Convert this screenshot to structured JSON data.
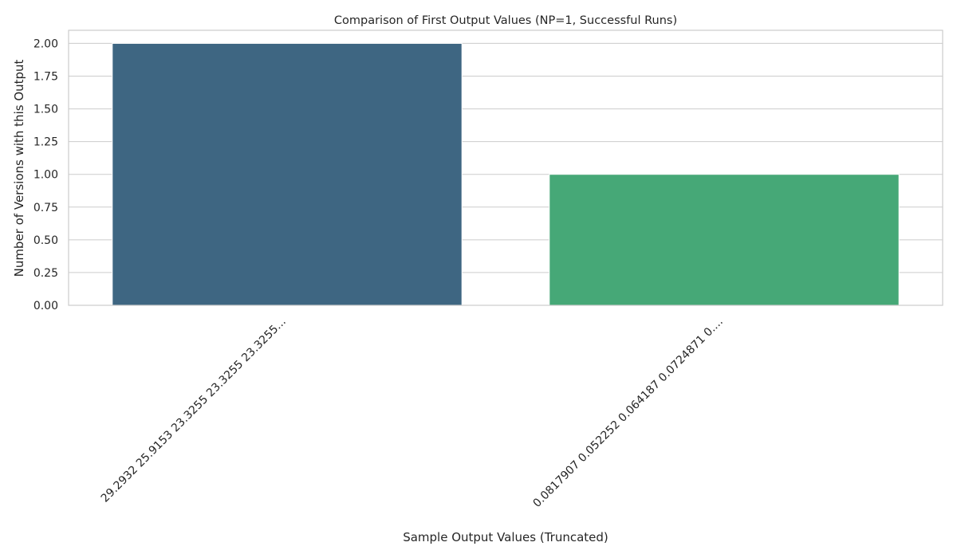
{
  "chart_data": {
    "type": "bar",
    "title": "Comparison of First Output Values (NP=1, Successful Runs)",
    "xlabel": "Sample Output Values (Truncated)",
    "ylabel": "Number of Versions with this Output",
    "categories": [
      "29.2932 25.9153 23.3255 23.3255 23.3255...",
      "0.0817907 0.052252 0.064187 0.0724871 0...."
    ],
    "values": [
      2,
      1
    ],
    "bar_colors": [
      "#3e6682",
      "#46a877"
    ],
    "ylim": [
      0,
      2.1
    ],
    "yticks": [
      0,
      0.25,
      0.5,
      0.75,
      1.0,
      1.25,
      1.5,
      1.75,
      2.0
    ],
    "ytick_labels": [
      "0.00",
      "0.25",
      "0.50",
      "0.75",
      "1.00",
      "1.25",
      "1.50",
      "1.75",
      "2.00"
    ],
    "grid": true,
    "legend": "none"
  }
}
